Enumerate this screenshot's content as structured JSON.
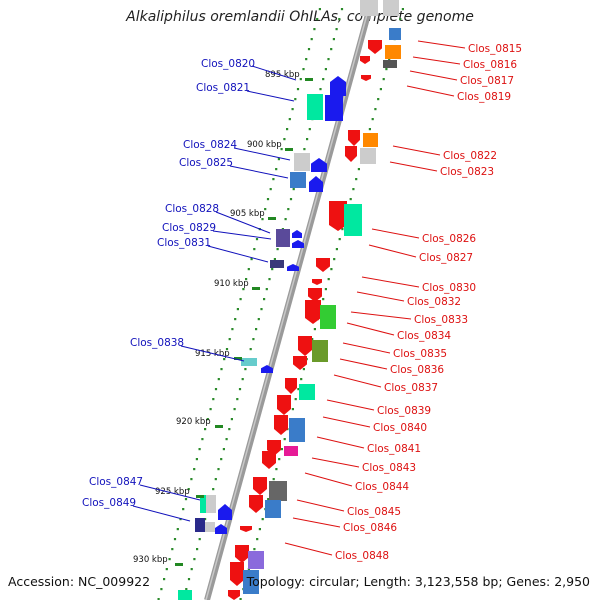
{
  "header": {
    "title": "Alkaliphilus oremlandii OhILAs, complete genome"
  },
  "footer": {
    "accession": "Accession: NC_009922",
    "stats": "Topology: circular; Length: 3,123,558 bp; Genes: 2,950"
  },
  "scale_labels": [
    "895 kbp",
    "900 kbp",
    "905 kbp",
    "910 kbp",
    "915 kbp",
    "920 kbp",
    "925 kbp",
    "930 kbp"
  ],
  "genes_left": [
    "Clos_0820",
    "Clos_0821",
    "Clos_0824",
    "Clos_0825",
    "Clos_0828",
    "Clos_0829",
    "Clos_0831",
    "Clos_0838",
    "Clos_0847",
    "Clos_0849"
  ],
  "genes_right": [
    "Clos_0815",
    "Clos_0816",
    "Clos_0817",
    "Clos_0819",
    "Clos_0822",
    "Clos_0823",
    "Clos_0826",
    "Clos_0827",
    "Clos_0830",
    "Clos_0832",
    "Clos_0833",
    "Clos_0834",
    "Clos_0835",
    "Clos_0836",
    "Clos_0837",
    "Clos_0839",
    "Clos_0840",
    "Clos_0841",
    "Clos_0843",
    "Clos_0844",
    "Clos_0845",
    "Clos_0846",
    "Clos_0848"
  ],
  "colors": {
    "backbone": "#9a9a9a",
    "forward_strand": "#1a1aee",
    "reverse_strand": "#ee1111",
    "left_label": "#1111bb",
    "right_label": "#dd1111",
    "tick_major": "#228822"
  }
}
